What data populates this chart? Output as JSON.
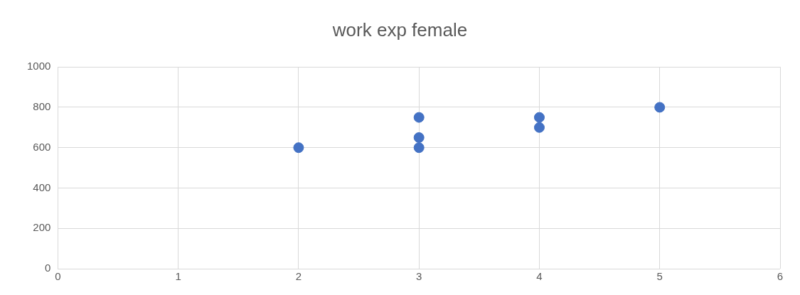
{
  "chart_data": {
    "type": "scatter",
    "title": "work exp female",
    "x": [
      2,
      3,
      3,
      3,
      4,
      4,
      5
    ],
    "values": [
      600,
      750,
      650,
      600,
      750,
      700,
      800
    ],
    "color": "#4472c4",
    "marker": "circle",
    "xlim": [
      0,
      6
    ],
    "xticks": [
      0,
      1,
      2,
      3,
      4,
      5,
      6
    ],
    "ylim": [
      0,
      1000
    ],
    "yticks": [
      0,
      200,
      400,
      600,
      800,
      1000
    ],
    "grid": true,
    "legend": false
  }
}
